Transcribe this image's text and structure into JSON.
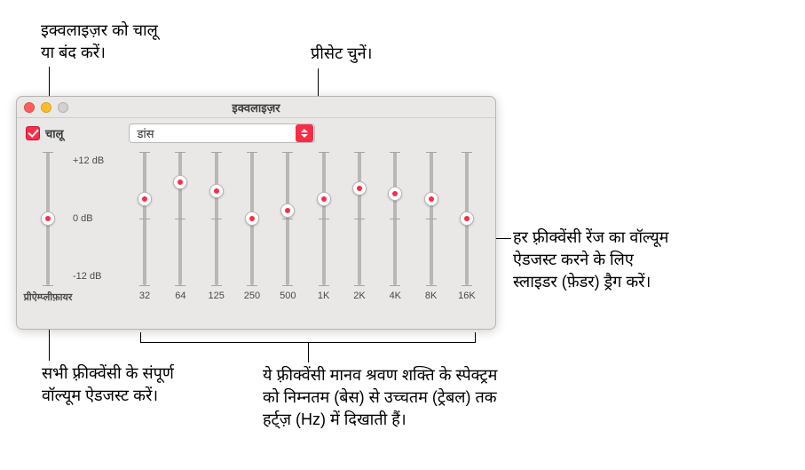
{
  "callouts": {
    "on_off": "इक्वलाइज़र को चालू\nया बंद करें।",
    "preset": "प्रीसेट चुनें।",
    "fader": "हर फ़्रीक्वेंसी रेंज का वॉल्यूम\nऐडजस्ट करने के लिए\nस्लाइडर (फ़ेडर) ड्रैग करें।",
    "preamp": "सभी फ़्रीक्वेंसी के संपूर्ण\nवॉल्यूम ऐडजस्ट करें।",
    "freq": "ये फ़्रीक्वेंसी मानव श्रवण शक्ति के स्पेक्ट्रम\nको निम्नतम (बेस) से उच्चतम (ट्रेबल) तक\nहर्ट्ज़ (Hz) में दिखाती हैं।",
    "fontsize": 18,
    "color": "#000000"
  },
  "window": {
    "title": "इक्वलाइज़र",
    "background": "#e9e8e7",
    "border_color": "#b8b6b4",
    "traffic_lights": {
      "close": "#ff5f57",
      "min": "#ffbd2e",
      "disabled": "#d3d1cf"
    }
  },
  "controls": {
    "on_checked": true,
    "on_label": "चालू",
    "preset_value": "डांस",
    "accent_color": "#fa2d48"
  },
  "equalizer": {
    "db_max_label": "+12 dB",
    "db_mid_label": "0 dB",
    "db_min_label": "-12 dB",
    "range_db": [
      -12,
      12
    ],
    "preamp_label": "प्रीऐम्प्लीफ़ायर",
    "preamp_value_db": 0,
    "bands": [
      {
        "freq_label": "32",
        "value_db": 3.5
      },
      {
        "freq_label": "64",
        "value_db": 6.5
      },
      {
        "freq_label": "125",
        "value_db": 5.0
      },
      {
        "freq_label": "250",
        "value_db": 0.0
      },
      {
        "freq_label": "500",
        "value_db": 1.5
      },
      {
        "freq_label": "1K",
        "value_db": 3.5
      },
      {
        "freq_label": "2K",
        "value_db": 5.5
      },
      {
        "freq_label": "4K",
        "value_db": 4.5
      },
      {
        "freq_label": "8K",
        "value_db": 3.5
      },
      {
        "freq_label": "16K",
        "value_db": 0.0
      }
    ],
    "track_color": "#b9b7b4",
    "thumb_color": "#ffffff",
    "thumb_dot_color": "#fa2d48",
    "label_color": "#4a4948",
    "label_fontsize": 11
  }
}
